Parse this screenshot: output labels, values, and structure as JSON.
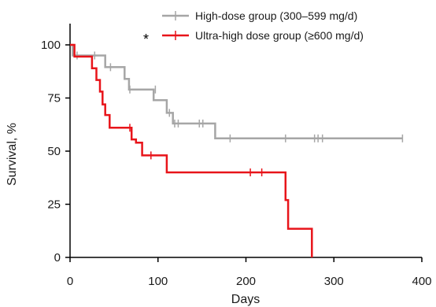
{
  "chart_data": {
    "type": "line",
    "step": true,
    "xlabel": "Days",
    "ylabel": "Survival, %",
    "xlim": [
      0,
      400
    ],
    "ylim": [
      0,
      100
    ],
    "xticks": [
      "0",
      "100",
      "200",
      "300",
      "400"
    ],
    "yticks": [
      "0",
      "25",
      "50",
      "75",
      "100"
    ],
    "legend_position": "top-right",
    "annotation": "*",
    "series": [
      {
        "name": "High-dose group (300–599 mg/d)",
        "color": "#a6a6a6",
        "x": [
          0,
          3,
          3,
          40,
          40,
          62,
          62,
          67,
          67,
          95,
          95,
          110,
          110,
          117,
          117,
          165,
          165,
          378
        ],
        "y": [
          100,
          100,
          95,
          95,
          89.5,
          89.5,
          84,
          84,
          79,
          79,
          74,
          74,
          68,
          68,
          63,
          63,
          56,
          56
        ],
        "censored": [
          [
            8,
            95
          ],
          [
            28,
            95
          ],
          [
            46,
            89.5
          ],
          [
            68,
            79
          ],
          [
            97,
            79
          ],
          [
            113,
            68
          ],
          [
            119,
            63
          ],
          [
            123,
            63
          ],
          [
            147,
            63
          ],
          [
            151,
            63
          ],
          [
            182,
            56
          ],
          [
            245,
            56
          ],
          [
            278,
            56
          ],
          [
            282,
            56
          ],
          [
            287,
            56
          ],
          [
            378,
            56
          ]
        ]
      },
      {
        "name": "Ultra-high dose group (≥600 mg/d)",
        "color": "#e8141a",
        "x": [
          0,
          5,
          5,
          25,
          25,
          30,
          30,
          34,
          34,
          37,
          37,
          40,
          40,
          45,
          45,
          70,
          70,
          75,
          75,
          82,
          82,
          110,
          110,
          245,
          245,
          248,
          248,
          275,
          275
        ],
        "y": [
          100,
          100,
          94.5,
          94.5,
          89,
          89,
          83.5,
          83.5,
          78,
          78,
          72,
          72,
          67,
          67,
          61,
          61,
          55.5,
          55.5,
          54,
          54,
          48,
          48,
          40,
          40,
          27,
          27,
          13.5,
          13.5,
          0
        ],
        "censored": [
          [
            68,
            61
          ],
          [
            92,
            48
          ],
          [
            205,
            40
          ],
          [
            218,
            40
          ]
        ]
      }
    ]
  }
}
